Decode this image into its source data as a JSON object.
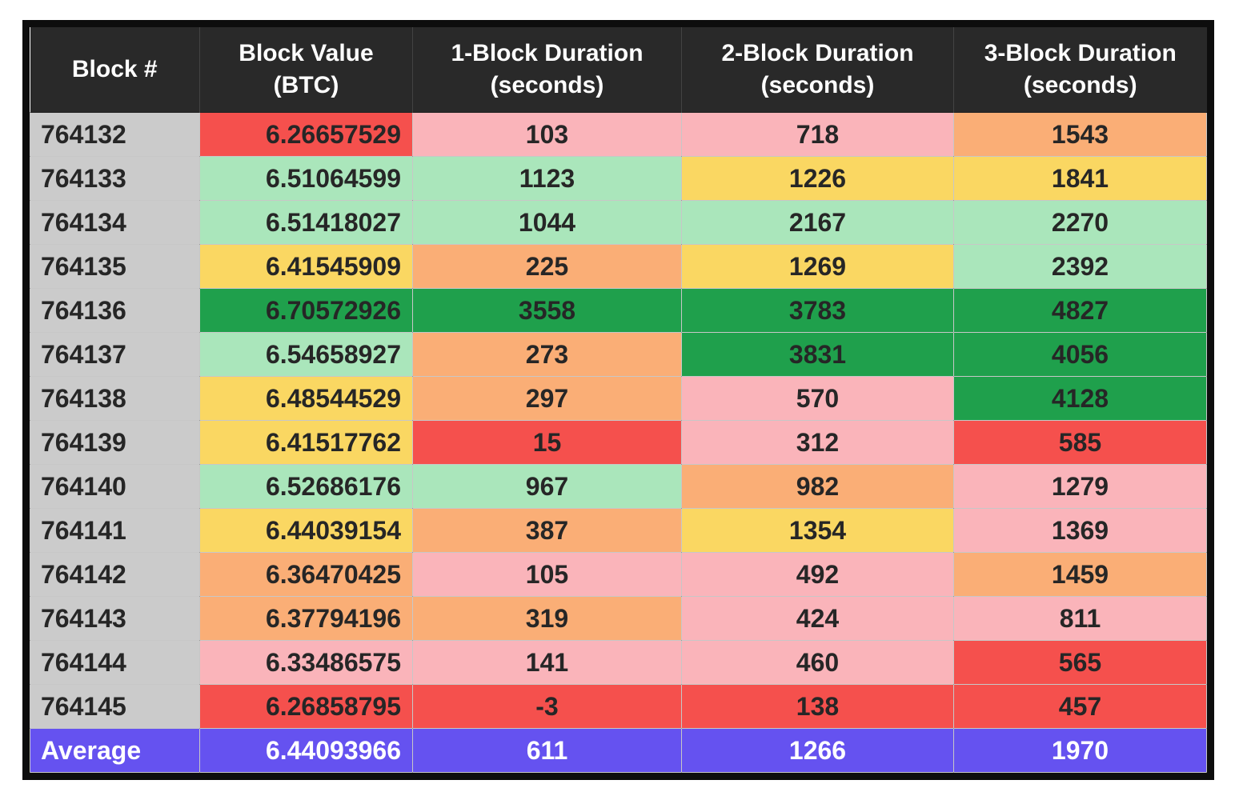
{
  "cell_colors": {
    "red": "#F5504D",
    "pink": "#FAB4BA",
    "orange": "#FAAE76",
    "yellow": "#FAD762",
    "green": "#AAE6BB",
    "darkgreen": "#1FA04C",
    "purple": "#6552F0",
    "gray": "#CBCBCB",
    "header": "#292929"
  },
  "chart_data": {
    "type": "table",
    "columns": [
      {
        "id": "block",
        "label_line1": "Block #",
        "label_line2": ""
      },
      {
        "id": "value",
        "label_line1": "Block Value",
        "label_line2": "(BTC)"
      },
      {
        "id": "d1",
        "label_line1": "1-Block Duration",
        "label_line2": "(seconds)"
      },
      {
        "id": "d2",
        "label_line1": "2-Block Duration",
        "label_line2": "(seconds)"
      },
      {
        "id": "d3",
        "label_line1": "3-Block Duration",
        "label_line2": "(seconds)"
      }
    ],
    "rows": [
      {
        "block": "764132",
        "value": "6.26657529",
        "value_color": "red",
        "d1": "103",
        "d1_color": "pink",
        "d2": "718",
        "d2_color": "pink",
        "d3": "1543",
        "d3_color": "orange"
      },
      {
        "block": "764133",
        "value": "6.51064599",
        "value_color": "green",
        "d1": "1123",
        "d1_color": "green",
        "d2": "1226",
        "d2_color": "yellow",
        "d3": "1841",
        "d3_color": "yellow"
      },
      {
        "block": "764134",
        "value": "6.51418027",
        "value_color": "green",
        "d1": "1044",
        "d1_color": "green",
        "d2": "2167",
        "d2_color": "green",
        "d3": "2270",
        "d3_color": "green"
      },
      {
        "block": "764135",
        "value": "6.41545909",
        "value_color": "yellow",
        "d1": "225",
        "d1_color": "orange",
        "d2": "1269",
        "d2_color": "yellow",
        "d3": "2392",
        "d3_color": "green"
      },
      {
        "block": "764136",
        "value": "6.70572926",
        "value_color": "darkgreen",
        "d1": "3558",
        "d1_color": "darkgreen",
        "d2": "3783",
        "d2_color": "darkgreen",
        "d3": "4827",
        "d3_color": "darkgreen"
      },
      {
        "block": "764137",
        "value": "6.54658927",
        "value_color": "green",
        "d1": "273",
        "d1_color": "orange",
        "d2": "3831",
        "d2_color": "darkgreen",
        "d3": "4056",
        "d3_color": "darkgreen"
      },
      {
        "block": "764138",
        "value": "6.48544529",
        "value_color": "yellow",
        "d1": "297",
        "d1_color": "orange",
        "d2": "570",
        "d2_color": "pink",
        "d3": "4128",
        "d3_color": "darkgreen"
      },
      {
        "block": "764139",
        "value": "6.41517762",
        "value_color": "yellow",
        "d1": "15",
        "d1_color": "red",
        "d2": "312",
        "d2_color": "pink",
        "d3": "585",
        "d3_color": "red"
      },
      {
        "block": "764140",
        "value": "6.52686176",
        "value_color": "green",
        "d1": "967",
        "d1_color": "green",
        "d2": "982",
        "d2_color": "orange",
        "d3": "1279",
        "d3_color": "pink"
      },
      {
        "block": "764141",
        "value": "6.44039154",
        "value_color": "yellow",
        "d1": "387",
        "d1_color": "orange",
        "d2": "1354",
        "d2_color": "yellow",
        "d3": "1369",
        "d3_color": "pink"
      },
      {
        "block": "764142",
        "value": "6.36470425",
        "value_color": "orange",
        "d1": "105",
        "d1_color": "pink",
        "d2": "492",
        "d2_color": "pink",
        "d3": "1459",
        "d3_color": "orange"
      },
      {
        "block": "764143",
        "value": "6.37794196",
        "value_color": "orange",
        "d1": "319",
        "d1_color": "orange",
        "d2": "424",
        "d2_color": "pink",
        "d3": "811",
        "d3_color": "pink"
      },
      {
        "block": "764144",
        "value": "6.33486575",
        "value_color": "pink",
        "d1": "141",
        "d1_color": "pink",
        "d2": "460",
        "d2_color": "pink",
        "d3": "565",
        "d3_color": "red"
      },
      {
        "block": "764145",
        "value": "6.26858795",
        "value_color": "red",
        "d1": "-3",
        "d1_color": "red",
        "d2": "138",
        "d2_color": "red",
        "d3": "457",
        "d3_color": "red"
      }
    ],
    "average_row": {
      "label": "Average",
      "value": "6.44093966",
      "d1": "611",
      "d2": "1266",
      "d3": "1970"
    }
  }
}
